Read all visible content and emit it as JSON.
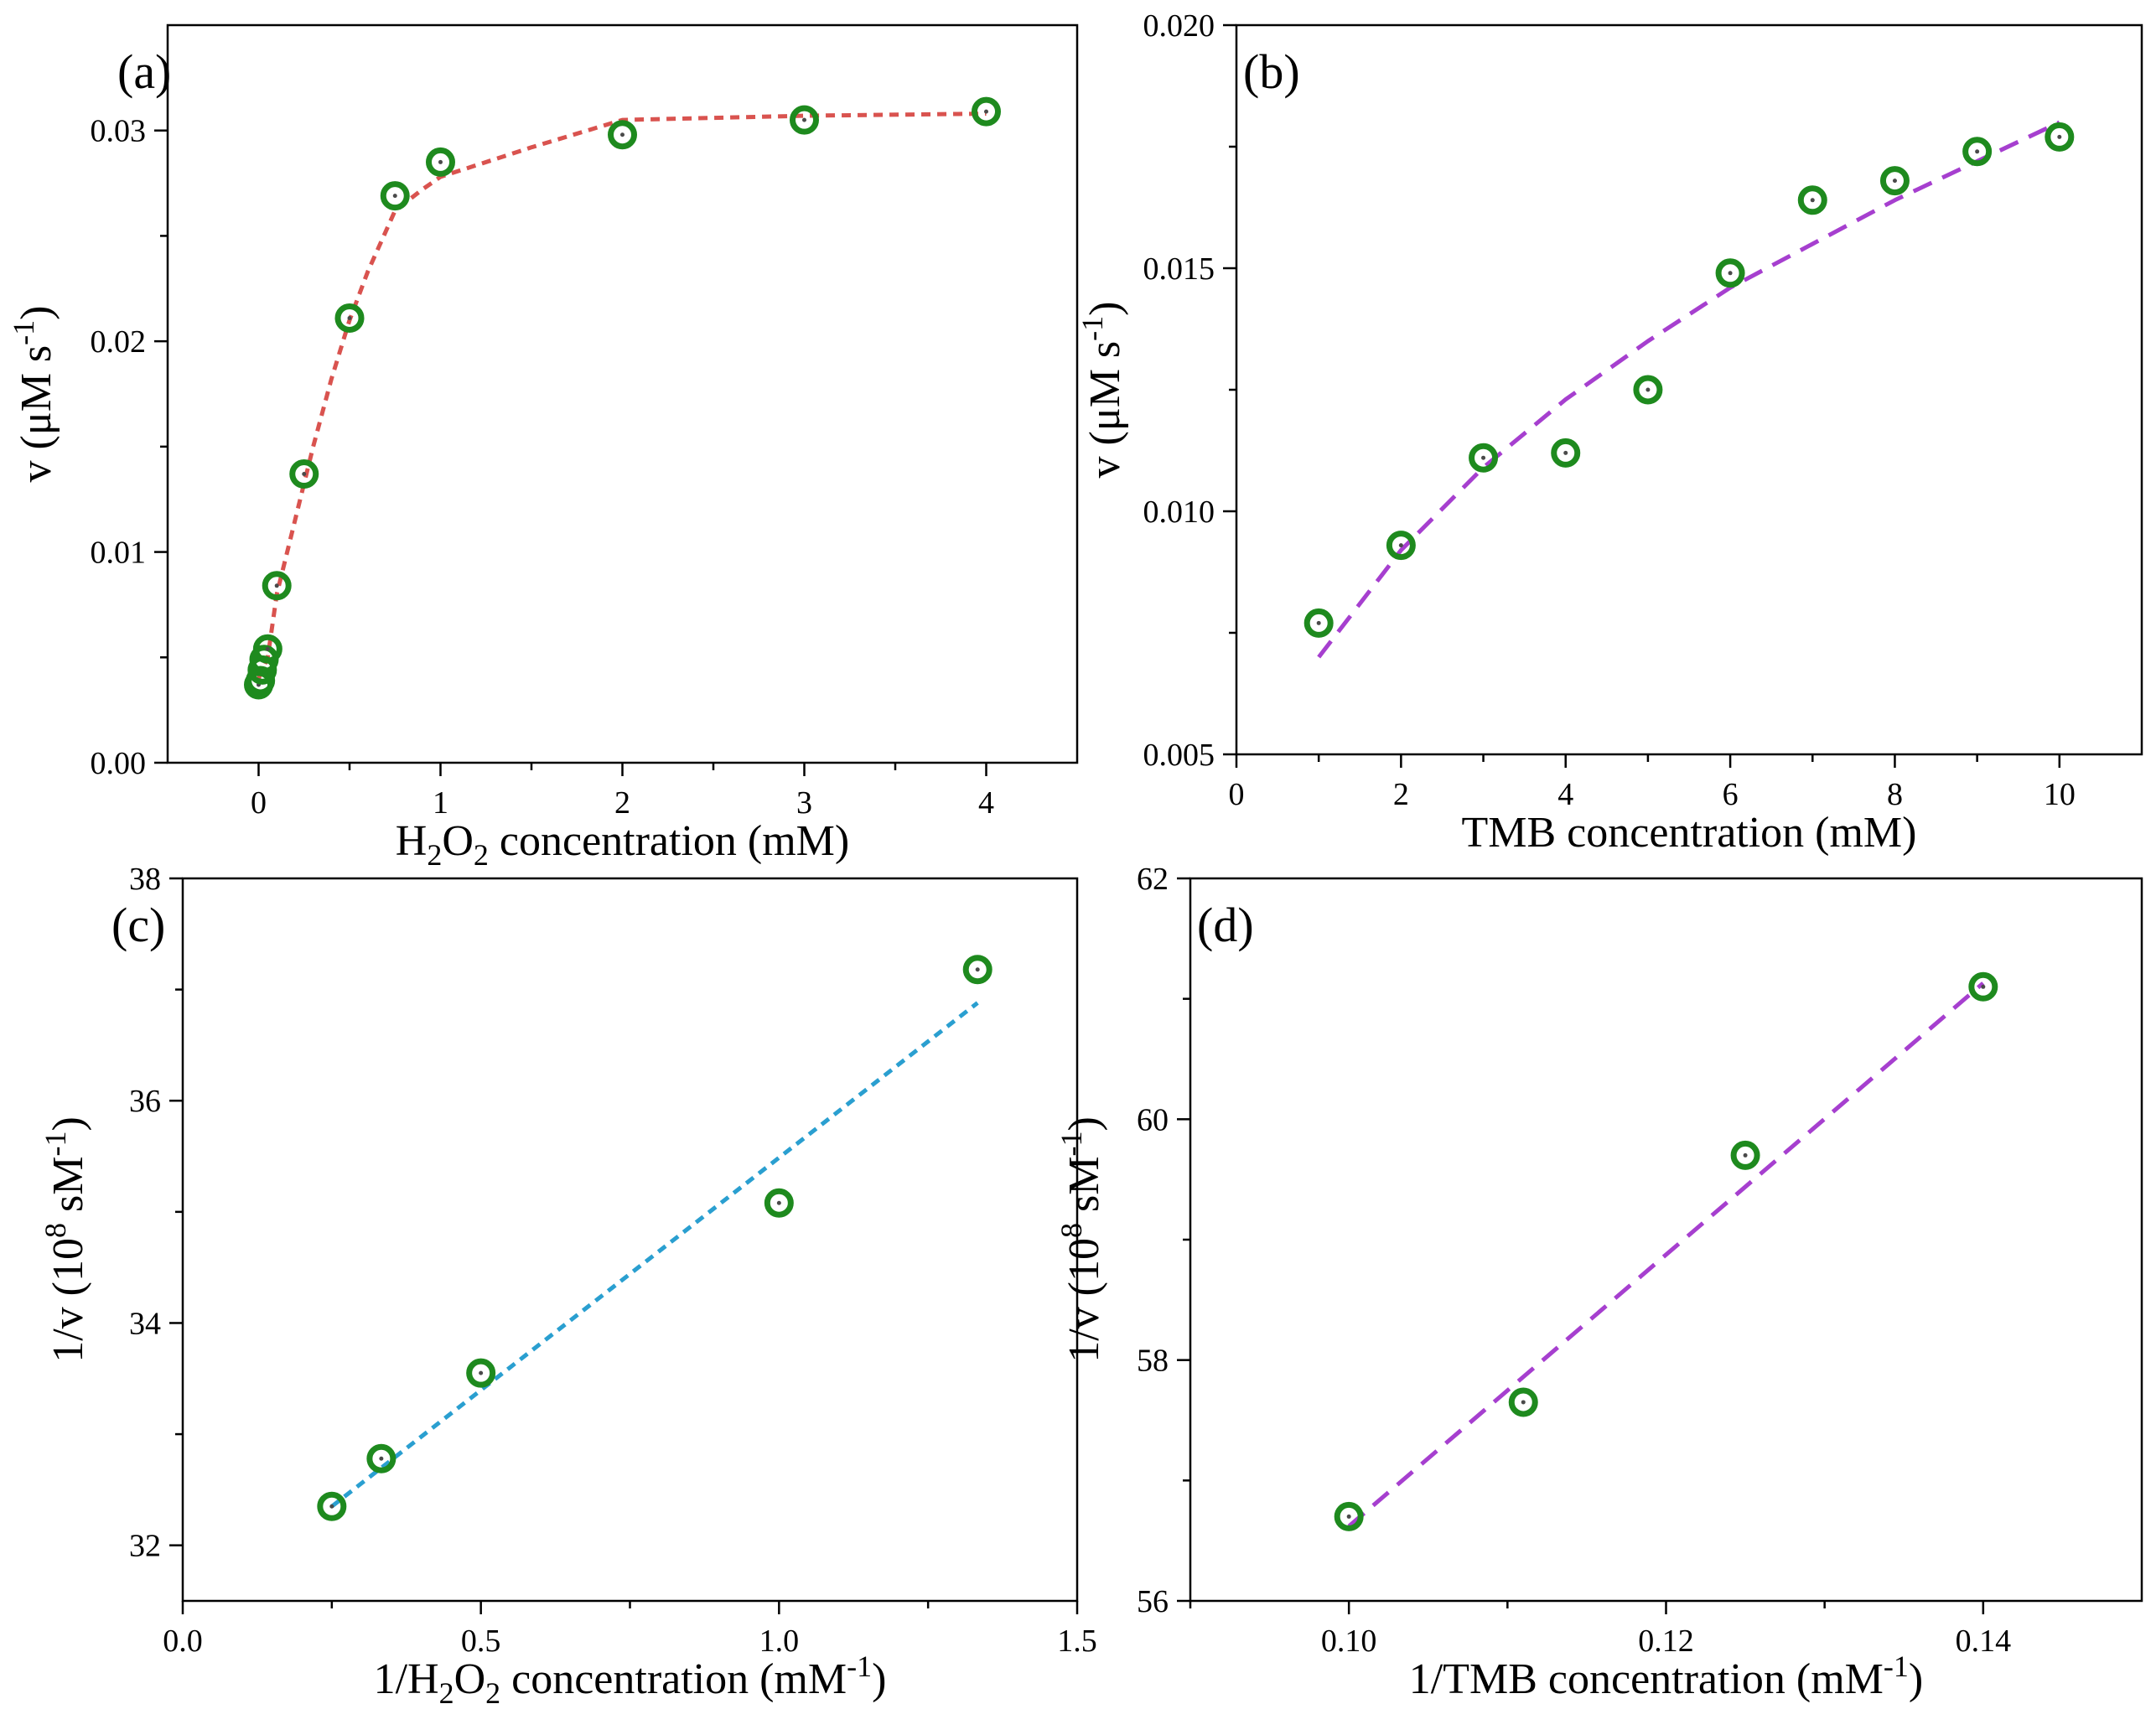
{
  "chart_data": [
    {
      "id": "a",
      "type": "scatter",
      "panel_label": "(a)",
      "xlabel": {
        "main": "H",
        "sub1": "2",
        "mid": "O",
        "sub2": "2",
        "rest": " concentration (mM)"
      },
      "ylabel": {
        "text": "v (μM s",
        "sup": "-1",
        "close": ")"
      },
      "xlim": [
        -0.5,
        4.5
      ],
      "ylim": [
        0,
        0.035
      ],
      "xticks": [
        0,
        1,
        2,
        3,
        4
      ],
      "xtick_labels": [
        "0",
        "1",
        "2",
        "3",
        "4"
      ],
      "yticks": [
        0,
        0.01,
        0.02,
        0.03
      ],
      "ytick_labels": [
        "0.00",
        "0.01",
        "0.02",
        "0.03"
      ],
      "x_minor": true,
      "y_minor": true,
      "series": [
        {
          "name": "data",
          "x": [
            0,
            0.01,
            0.02,
            0.03,
            0.05,
            0.1,
            0.25,
            0.5,
            0.75,
            1,
            2,
            3,
            4
          ],
          "y": [
            0.0037,
            0.0039,
            0.0044,
            0.0049,
            0.0054,
            0.0084,
            0.0137,
            0.0211,
            0.0269,
            0.0285,
            0.0298,
            0.0305,
            0.0309
          ]
        }
      ],
      "fit": {
        "x": [
          0,
          0.05,
          0.1,
          0.2,
          0.3,
          0.4,
          0.5,
          0.6,
          0.75,
          0.9,
          1.0,
          1.5,
          2.0,
          3.0,
          4.0
        ],
        "y": [
          0.004,
          0.005,
          0.008,
          0.0115,
          0.015,
          0.0182,
          0.021,
          0.0233,
          0.0262,
          0.0272,
          0.0278,
          0.0292,
          0.0305,
          0.0307,
          0.0308
        ],
        "color": "#d9534f",
        "dash": "short"
      },
      "marker_color": "#1e8a1e"
    },
    {
      "id": "b",
      "type": "scatter",
      "panel_label": "(b)",
      "xlabel": {
        "text": "TMB concentration (mM)"
      },
      "ylabel": {
        "text": "v (μM s",
        "sup": "-1",
        "close": ")"
      },
      "xlim": [
        0,
        11
      ],
      "ylim": [
        0.005,
        0.02
      ],
      "xticks": [
        0,
        2,
        4,
        6,
        8,
        10
      ],
      "xtick_labels": [
        "0",
        "2",
        "4",
        "6",
        "8",
        "10"
      ],
      "yticks": [
        0.005,
        0.01,
        0.015,
        0.02
      ],
      "ytick_labels": [
        "0.005",
        "0.010",
        "0.015",
        "0.020"
      ],
      "x_minor": true,
      "y_minor": true,
      "series": [
        {
          "name": "data",
          "x": [
            1,
            2,
            3,
            4,
            5,
            6,
            7,
            8,
            9,
            10
          ],
          "y": [
            0.0077,
            0.0093,
            0.0111,
            0.0112,
            0.0125,
            0.0149,
            0.0164,
            0.0168,
            0.0174,
            0.0177
          ]
        }
      ],
      "fit": {
        "x": [
          1,
          2,
          3,
          4,
          5,
          6,
          7,
          8,
          9,
          10
        ],
        "y": [
          0.007,
          0.0092,
          0.0109,
          0.0123,
          0.0135,
          0.0146,
          0.0155,
          0.0164,
          0.0172,
          0.018
        ],
        "color": "#a63fcf",
        "dash": "long"
      },
      "marker_color": "#1e8a1e"
    },
    {
      "id": "c",
      "type": "scatter",
      "panel_label": "(c)",
      "xlabel": {
        "main": "1/H",
        "sub1": "2",
        "mid": "O",
        "sub2": "2",
        "rest": " concentration (mM",
        "sup": "-1",
        "close": ")"
      },
      "ylabel": {
        "text": "1/v (10",
        "sup": "8",
        "mid": " sM",
        "sup2": "-1",
        "close": ")"
      },
      "xlim": [
        0,
        1.5
      ],
      "ylim": [
        31.5,
        38
      ],
      "xticks": [
        0,
        0.5,
        1.0,
        1.5
      ],
      "xtick_labels": [
        "0.0",
        "0.5",
        "1.0",
        "1.5"
      ],
      "yticks": [
        32,
        34,
        36,
        38
      ],
      "ytick_labels": [
        "32",
        "34",
        "36",
        "38"
      ],
      "x_minor": true,
      "y_minor": true,
      "series": [
        {
          "name": "data",
          "x": [
            0.25,
            0.333,
            0.5,
            1.0,
            1.333
          ],
          "y": [
            32.35,
            32.78,
            33.55,
            35.08,
            37.18
          ]
        }
      ],
      "fit": {
        "x": [
          0.25,
          1.333
        ],
        "y": [
          32.35,
          36.88
        ],
        "color": "#2a9fd0",
        "dash": "short"
      },
      "marker_color": "#1e8a1e"
    },
    {
      "id": "d",
      "type": "scatter",
      "panel_label": "(d)",
      "xlabel": {
        "text": "1/TMB concentration (mM",
        "sup": "-1",
        "close": ")"
      },
      "ylabel": {
        "text": "1/v (10",
        "sup": "8",
        "mid": " sM",
        "sup2": "-1",
        "close": ")"
      },
      "xlim": [
        0.09,
        0.15
      ],
      "ylim": [
        56,
        62
      ],
      "xticks": [
        0.1,
        0.12,
        0.14
      ],
      "xtick_labels": [
        "0.10",
        "0.12",
        "0.14"
      ],
      "yticks": [
        56,
        58,
        60,
        62
      ],
      "ytick_labels": [
        "56",
        "58",
        "60",
        "62"
      ],
      "x_minor": true,
      "y_minor": true,
      "series": [
        {
          "name": "data",
          "x": [
            0.1,
            0.111,
            0.125,
            0.14
          ],
          "y": [
            56.7,
            57.65,
            59.7,
            61.1
          ]
        }
      ],
      "fit": {
        "x": [
          0.1,
          0.14
        ],
        "y": [
          56.62,
          61.13
        ],
        "color": "#a63fcf",
        "dash": "long"
      },
      "marker_color": "#1e8a1e"
    }
  ]
}
